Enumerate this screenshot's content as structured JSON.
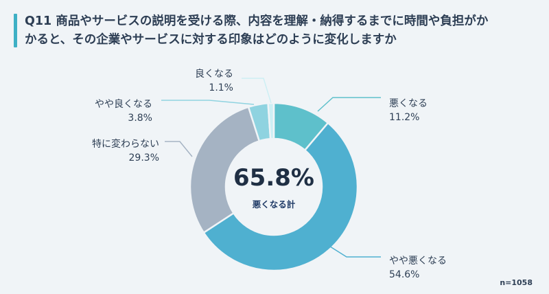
{
  "title": {
    "line1": "Q11 商品やサービスの説明を受ける際、内容を理解・納得するまでに時間や負担がか",
    "line2": "かると、その企業やサービスに対する印象はどのように変化しますか"
  },
  "note": "n=1058",
  "chart_data": {
    "type": "pie",
    "donut": true,
    "center": {
      "value": "65.8%",
      "label": "悪くなる計"
    },
    "slices": [
      {
        "label": "悪くなる",
        "value": 11.2,
        "display": "11.2%",
        "color": "#5ec0cb"
      },
      {
        "label": "やや悪くなる",
        "value": 54.6,
        "display": "54.6%",
        "color": "#4fb0d0"
      },
      {
        "label": "特に変わらない",
        "value": 29.3,
        "display": "29.3%",
        "color": "#a5b3c3"
      },
      {
        "label": "やや良くなる",
        "value": 3.8,
        "display": "3.8%",
        "color": "#8fd3e0"
      },
      {
        "label": "良くなる",
        "value": 1.1,
        "display": "1.1%",
        "color": "#cdeff4"
      }
    ],
    "legend": "none"
  }
}
